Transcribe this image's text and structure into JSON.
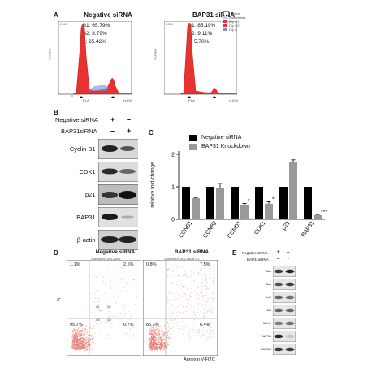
{
  "panel_a": {
    "letter": "A",
    "left": {
      "title": "Negative siRNA",
      "g1": "G1: 65.79%",
      "g2": "G2: 8.79%",
      "s": "S: 25.42%",
      "ylabel": "Number",
      "xlabel": "PI-A",
      "xunit": "(x100)"
    },
    "right": {
      "title": "BAP31 siRNA",
      "g1": "G1: 85.19%",
      "g2": "G2: 9.11%",
      "s": "S: 5.70%",
      "ylabel": "Number",
      "xlabel": "PI-A",
      "xunit": "(x100)",
      "legend": [
        "Debris",
        "Aggregates",
        "Dip G1",
        "Dip G2",
        "Dip S"
      ]
    }
  },
  "panel_b": {
    "letter": "B",
    "row1_label": "Negative siRNA",
    "row2_label": "BAP31siRNA",
    "row1_signs": [
      "+",
      "–"
    ],
    "row2_signs": [
      "–",
      "+"
    ],
    "bands": [
      "Cyclin B1",
      "CDK1",
      "p21",
      "BAP31",
      "β-actin"
    ]
  },
  "panel_c": {
    "letter": "C",
    "chart_data": {
      "type": "bar",
      "categories": [
        "CCNB1",
        "CCNB2",
        "CCND1",
        "CDK1",
        "p21",
        "BAP31"
      ],
      "series": [
        {
          "name": "Negative siRNA",
          "color": "#000000",
          "values": [
            1,
            1,
            1,
            1,
            1,
            1
          ]
        },
        {
          "name": "BAP31 Knockdown",
          "color": "#999999",
          "values": [
            0.65,
            0.95,
            0.45,
            0.48,
            1.75,
            0.13
          ]
        }
      ],
      "errors": [
        0.02,
        0.15,
        0.04,
        0.06,
        0.08,
        0.02
      ],
      "significance": [
        "",
        "",
        "*",
        "*",
        "",
        "***"
      ],
      "ylabel": "relative fold change",
      "yticks": [
        "0",
        "1",
        "2"
      ],
      "ylim": [
        0,
        2
      ],
      "legend_position": "top"
    }
  },
  "panel_d": {
    "letter": "D",
    "left": {
      "title": "Negative siRNA",
      "subtitle": "Specimen_001-con1",
      "q_ul": "1.1%",
      "q_ur": "2.5%",
      "q_ll": "95.7%",
      "q_lr": "0.7%",
      "ylabel": "PI"
    },
    "right": {
      "title": "BAP31 siRNA",
      "subtitle": "Specimen_001-siBAP31",
      "q_ul": "0.8%",
      "q_ur": "7.5%",
      "q_ll": "85.3%",
      "q_lr": "6.4%"
    },
    "xlabel": "Annexin V-FITC",
    "gate_labels": [
      "Q1",
      "Q2",
      "Q3",
      "Q4"
    ]
  },
  "panel_e": {
    "letter": "E",
    "row1_label": "Negative siRNA",
    "row2_label": "BAP31siRNA",
    "row1_signs": [
      "+",
      "–"
    ],
    "row2_signs": [
      "–",
      "+"
    ],
    "bands": [
      "Bax",
      "Bak",
      "Bcl2",
      "Bid",
      "MLKL",
      "BAP31",
      "GAPDH"
    ]
  }
}
